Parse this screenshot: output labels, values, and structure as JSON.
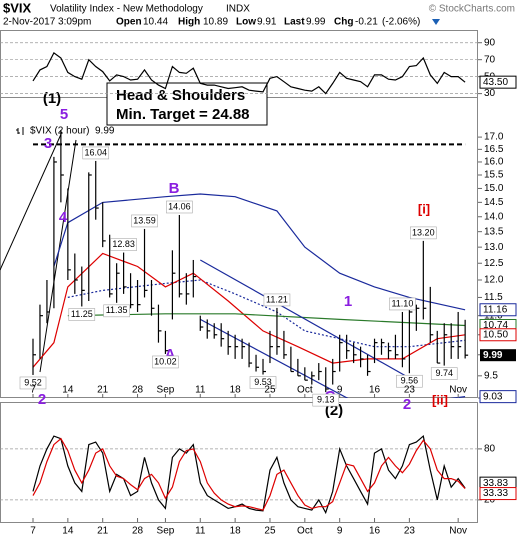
{
  "header": {
    "symbol": "$VIX",
    "name": "Volatility Index - New Methodology",
    "exchange": "INDX",
    "datetime": "2-Nov-2017 3:09pm",
    "quote": [
      {
        "label": "Open",
        "value": 10.44
      },
      {
        "label": "High",
        "value": 10.89
      },
      {
        "label": "Low",
        "value": 9.91
      },
      {
        "label": "Last",
        "value": 9.99
      },
      {
        "label": "Chg",
        "value": -0.21
      }
    ],
    "chg_pct": "(-2.06%)",
    "credit": "© StockCharts.com"
  },
  "callout": [
    "Head & Shoulders",
    "Min. Target = 24.88"
  ],
  "wave_labels": [
    "(1)",
    "5",
    "3",
    "4",
    "2",
    "B",
    "A",
    "1",
    "C",
    "2",
    "(2)",
    "[i]",
    "[ii]"
  ],
  "chart_data": [
    {
      "type": "line",
      "x": [
        "2017-08-07",
        "2017-08-08",
        "2017-08-09",
        "2017-08-10",
        "2017-08-11",
        "2017-08-14",
        "2017-08-15",
        "2017-08-16",
        "2017-08-17",
        "2017-08-18",
        "2017-08-21",
        "2017-08-22",
        "2017-08-23",
        "2017-08-24",
        "2017-08-25",
        "2017-08-28",
        "2017-08-29",
        "2017-08-30",
        "2017-08-31",
        "2017-09-01",
        "2017-09-05",
        "2017-09-06",
        "2017-09-07",
        "2017-09-08",
        "2017-09-11",
        "2017-09-12",
        "2017-09-13",
        "2017-09-14",
        "2017-09-15",
        "2017-09-18",
        "2017-09-19",
        "2017-09-20",
        "2017-09-21",
        "2017-09-22",
        "2017-09-25",
        "2017-09-26",
        "2017-09-27",
        "2017-09-28",
        "2017-09-29",
        "2017-10-02",
        "2017-10-03",
        "2017-10-04",
        "2017-10-05",
        "2017-10-06",
        "2017-10-09",
        "2017-10-10",
        "2017-10-11",
        "2017-10-12",
        "2017-10-13",
        "2017-10-16",
        "2017-10-17",
        "2017-10-18",
        "2017-10-19",
        "2017-10-20",
        "2017-10-23",
        "2017-10-24",
        "2017-10-25",
        "2017-10-26",
        "2017-10-27",
        "2017-10-30",
        "2017-10-31",
        "2017-11-01",
        "2017-11-02"
      ],
      "ylim": [
        26,
        105
      ],
      "yticks": [
        90,
        70,
        50,
        30
      ],
      "series": [
        {
          "color": "#000000",
          "last_label": "43.50",
          "values": [
            45,
            58,
            62,
            78,
            72,
            55,
            50,
            47,
            70,
            62,
            56,
            45,
            52,
            50,
            46,
            47,
            58,
            46,
            40,
            36,
            62,
            55,
            54,
            60,
            42,
            40,
            40,
            38,
            36,
            37,
            38,
            34,
            33,
            32,
            48,
            50,
            44,
            38,
            36,
            34,
            33,
            38,
            30,
            42,
            55,
            48,
            46,
            44,
            38,
            52,
            52,
            47,
            46,
            50,
            62,
            63,
            72,
            52,
            42,
            55,
            50,
            50,
            43.5
          ]
        }
      ]
    },
    {
      "type": "candlestick",
      "scale": "log",
      "x": [
        "2017-08-07",
        "2017-08-08",
        "2017-08-09",
        "2017-08-10",
        "2017-08-11",
        "2017-08-14",
        "2017-08-15",
        "2017-08-16",
        "2017-08-17",
        "2017-08-18",
        "2017-08-21",
        "2017-08-22",
        "2017-08-23",
        "2017-08-24",
        "2017-08-25",
        "2017-08-28",
        "2017-08-29",
        "2017-08-30",
        "2017-08-31",
        "2017-09-01",
        "2017-09-05",
        "2017-09-06",
        "2017-09-07",
        "2017-09-08",
        "2017-09-11",
        "2017-09-12",
        "2017-09-13",
        "2017-09-14",
        "2017-09-15",
        "2017-09-18",
        "2017-09-19",
        "2017-09-20",
        "2017-09-21",
        "2017-09-22",
        "2017-09-25",
        "2017-09-26",
        "2017-09-27",
        "2017-09-28",
        "2017-09-29",
        "2017-10-02",
        "2017-10-03",
        "2017-10-04",
        "2017-10-05",
        "2017-10-06",
        "2017-10-09",
        "2017-10-10",
        "2017-10-11",
        "2017-10-12",
        "2017-10-13",
        "2017-10-16",
        "2017-10-17",
        "2017-10-18",
        "2017-10-19",
        "2017-10-20",
        "2017-10-23",
        "2017-10-24",
        "2017-10-25",
        "2017-10-26",
        "2017-10-27",
        "2017-10-30",
        "2017-10-31",
        "2017-11-01",
        "2017-11-02"
      ],
      "xticks": [
        {
          "value": "2017-08-07",
          "label": "7"
        },
        {
          "value": "2017-08-14",
          "label": "14"
        },
        {
          "value": "2017-08-21",
          "label": "21"
        },
        {
          "value": "2017-08-28",
          "label": "28"
        },
        {
          "value": "2017-09-01",
          "label": "Sep"
        },
        {
          "value": "2017-09-11",
          "label": "11"
        },
        {
          "value": "2017-09-18",
          "label": "18"
        },
        {
          "value": "2017-09-25",
          "label": "25"
        },
        {
          "value": "2017-10-02",
          "label": "Oct"
        },
        {
          "value": "2017-10-09",
          "label": "9"
        },
        {
          "value": "2017-10-16",
          "label": "16"
        },
        {
          "value": "2017-10-23",
          "label": "23"
        },
        {
          "value": "2017-11-01",
          "label": "Nov"
        }
      ],
      "ylim": [
        9.0,
        18.7
      ],
      "yticks": [
        {
          "value": 17,
          "label": "17.0"
        },
        16.5,
        {
          "value": 16,
          "label": "16.0"
        },
        15.5,
        {
          "value": 15,
          "label": "15.0"
        },
        14.5,
        {
          "value": 14,
          "label": "14.0"
        },
        13.5,
        {
          "value": 13,
          "label": "13.0"
        },
        12.5,
        {
          "value": 12,
          "label": "12.0"
        },
        11.5,
        {
          "value": 11,
          "label": "11.0"
        },
        10.5,
        {
          "value": 10,
          "label": "10.0"
        },
        9.5,
        {
          "value": 9,
          "label": "9.0"
        }
      ],
      "series": [
        {
          "name": "$VIX (2 hour)",
          "color": "#000000",
          "high": [
            10.4,
            11.3,
            12.0,
            16.2,
            17.3,
            15.0,
            12.8,
            12.4,
            15.6,
            16.04,
            14.5,
            13.4,
            12.5,
            12.83,
            12.2,
            12.0,
            13.59,
            12.0,
            11.3,
            10.6,
            12.9,
            14.06,
            12.2,
            12.6,
            11.0,
            10.9,
            10.8,
            10.8,
            10.6,
            10.5,
            10.4,
            10.3,
            10.0,
            9.9,
            10.6,
            11.21,
            10.6,
            10.2,
            9.9,
            9.7,
            9.6,
            9.8,
            9.7,
            9.9,
            10.5,
            10.5,
            10.3,
            10.2,
            10.0,
            10.4,
            10.4,
            10.3,
            10.5,
            11.1,
            11.2,
            11.3,
            13.2,
            11.8,
            10.6,
            10.8,
            10.8,
            11.1,
            10.89
          ],
          "low": [
            9.52,
            9.9,
            10.8,
            11.2,
            14.5,
            12.0,
            11.6,
            11.25,
            11.4,
            13.9,
            13.0,
            11.5,
            11.35,
            11.6,
            11.2,
            11.1,
            11.5,
            11.0,
            10.3,
            10.02,
            10.9,
            11.5,
            11.3,
            11.5,
            10.6,
            10.4,
            10.4,
            10.2,
            10.0,
            9.9,
            9.9,
            9.7,
            9.6,
            9.53,
            9.8,
            10.0,
            9.9,
            9.6,
            9.5,
            9.4,
            9.3,
            9.4,
            9.13,
            9.3,
            9.6,
            9.9,
            9.8,
            9.7,
            9.5,
            9.8,
            10.0,
            9.9,
            9.9,
            9.7,
            9.56,
            10.6,
            10.9,
            10.3,
            9.8,
            9.74,
            9.9,
            9.9,
            9.91
          ],
          "values": [
            10.0,
            11.0,
            11.1,
            16.0,
            15.5,
            12.3,
            12.0,
            11.7,
            15.5,
            14.3,
            13.2,
            11.6,
            12.2,
            11.8,
            11.3,
            11.3,
            11.7,
            11.2,
            10.6,
            10.1,
            12.2,
            11.6,
            11.6,
            12.1,
            10.7,
            10.6,
            10.5,
            10.4,
            10.2,
            10.2,
            10.2,
            9.8,
            9.7,
            9.6,
            10.2,
            10.2,
            10.0,
            9.6,
            9.5,
            9.4,
            9.5,
            9.6,
            9.2,
            9.6,
            10.3,
            10.1,
            10.0,
            9.9,
            9.6,
            10.3,
            10.3,
            10.1,
            10.0,
            9.9,
            11.1,
            11.2,
            11.2,
            10.5,
            9.8,
            10.5,
            10.2,
            10.2,
            9.99
          ]
        }
      ],
      "overlays": [
        {
          "color": "#1a2a9c",
          "style": "solid",
          "x": [
            "2017-08-10",
            "2017-08-14",
            "2017-08-21",
            "2017-09-01",
            "2017-09-11",
            "2017-09-18",
            "2017-09-26",
            "2017-10-02",
            "2017-10-09",
            "2017-10-16",
            "2017-10-23",
            "2017-11-02"
          ],
          "values": [
            12.4,
            13.8,
            14.5,
            14.7,
            14.8,
            14.7,
            14.2,
            13.0,
            12.2,
            11.8,
            11.5,
            11.16
          ]
        },
        {
          "color": "#1a2a9c",
          "style": "solid",
          "x": [
            "2017-10-13",
            "2017-10-20",
            "2017-10-27",
            "2017-11-02"
          ],
          "values": [
            8.8,
            8.9,
            8.95,
            9.03
          ]
        },
        {
          "color": "#1a2a9c",
          "style": "dotted",
          "x": [
            "2017-08-14",
            "2017-08-21",
            "2017-09-01",
            "2017-09-11",
            "2017-09-18",
            "2017-09-26",
            "2017-10-02",
            "2017-10-09",
            "2017-10-16",
            "2017-10-23",
            "2017-11-02"
          ],
          "values": [
            11.5,
            11.7,
            11.9,
            12.0,
            11.6,
            11.1,
            10.6,
            10.4,
            10.2,
            10.2,
            10.36
          ]
        },
        {
          "color": "#dd0000",
          "style": "solid",
          "x": [
            "2017-08-07",
            "2017-08-10",
            "2017-08-14",
            "2017-08-21",
            "2017-08-28",
            "2017-09-01",
            "2017-09-08",
            "2017-09-15",
            "2017-09-22",
            "2017-09-29",
            "2017-10-06",
            "2017-10-13",
            "2017-10-20",
            "2017-10-27",
            "2017-11-02"
          ],
          "values": [
            9.7,
            10.3,
            11.8,
            12.8,
            12.4,
            11.8,
            12.2,
            11.4,
            10.6,
            10.2,
            9.8,
            9.9,
            9.9,
            10.4,
            10.5
          ]
        },
        {
          "color": "#2a7a2a",
          "style": "solid",
          "x": [
            "2017-08-14",
            "2017-09-01",
            "2017-09-18",
            "2017-10-09",
            "2017-11-02"
          ],
          "values": [
            11.0,
            11.05,
            11.05,
            10.9,
            10.74
          ]
        },
        {
          "color": "#000000",
          "style": "dashed",
          "x": [
            "2017-08-07",
            "2017-11-02"
          ],
          "values": [
            16.7,
            16.7
          ]
        },
        {
          "color": "#1a2a9c",
          "style": "solid",
          "x": [
            "2017-09-11",
            "2017-10-23"
          ],
          "values": [
            12.6,
            9.45
          ]
        },
        {
          "color": "#1a2a9c",
          "style": "solid",
          "x": [
            "2017-09-11",
            "2017-10-27"
          ],
          "values": [
            10.9,
            8.0
          ]
        }
      ],
      "annotations": [
        {
          "x": "2017-08-18",
          "value": 16.04
        },
        {
          "x": "2017-08-29",
          "value": 13.59
        },
        {
          "x": "2017-08-24",
          "value": 12.83
        },
        {
          "x": "2017-09-06",
          "value": 14.06
        },
        {
          "x": "2017-08-16",
          "value": 11.25
        },
        {
          "x": "2017-08-23",
          "value": 11.35
        },
        {
          "x": "2017-09-01",
          "value": 10.02
        },
        {
          "x": "2017-08-07",
          "value": 9.52
        },
        {
          "x": "2017-09-22",
          "value": 9.53
        },
        {
          "x": "2017-09-26",
          "value": 11.21
        },
        {
          "x": "2017-10-05",
          "value": 9.13
        },
        {
          "x": "2017-10-20",
          "value": 11.1,
          "label": "11.10"
        },
        {
          "x": "2017-10-23",
          "value": 9.56
        },
        {
          "x": "2017-10-25",
          "value": 13.2,
          "label": "13.20"
        },
        {
          "x": "2017-10-30",
          "value": 9.74
        }
      ],
      "right_labels": [
        {
          "value": 11.16,
          "color": "#1a2a9c"
        },
        {
          "value": 10.74,
          "color": "#2a7a2a"
        },
        {
          "value": 10.5,
          "label": "10.50",
          "color": "#dd0000"
        },
        {
          "value": 9.03,
          "color": "#1a2a9c"
        }
      ]
    },
    {
      "type": "line",
      "x": [
        "2017-08-07",
        "2017-08-08",
        "2017-08-09",
        "2017-08-10",
        "2017-08-11",
        "2017-08-14",
        "2017-08-15",
        "2017-08-16",
        "2017-08-17",
        "2017-08-18",
        "2017-08-21",
        "2017-08-22",
        "2017-08-23",
        "2017-08-24",
        "2017-08-25",
        "2017-08-28",
        "2017-08-29",
        "2017-08-30",
        "2017-08-31",
        "2017-09-01",
        "2017-09-05",
        "2017-09-06",
        "2017-09-07",
        "2017-09-08",
        "2017-09-11",
        "2017-09-12",
        "2017-09-13",
        "2017-09-14",
        "2017-09-15",
        "2017-09-18",
        "2017-09-19",
        "2017-09-20",
        "2017-09-21",
        "2017-09-22",
        "2017-09-25",
        "2017-09-26",
        "2017-09-27",
        "2017-09-28",
        "2017-09-29",
        "2017-10-02",
        "2017-10-03",
        "2017-10-04",
        "2017-10-05",
        "2017-10-06",
        "2017-10-09",
        "2017-10-10",
        "2017-10-11",
        "2017-10-12",
        "2017-10-13",
        "2017-10-16",
        "2017-10-17",
        "2017-10-18",
        "2017-10-19",
        "2017-10-20",
        "2017-10-23",
        "2017-10-24",
        "2017-10-25",
        "2017-10-26",
        "2017-10-27",
        "2017-10-30",
        "2017-10-31",
        "2017-11-01",
        "2017-11-02"
      ],
      "ylim": [
        -6,
        134
      ],
      "yticks": [
        80,
        20
      ],
      "series": [
        {
          "color": "#000000",
          "values": [
            30,
            60,
            80,
            95,
            92,
            60,
            40,
            30,
            85,
            88,
            75,
            30,
            50,
            45,
            25,
            30,
            70,
            40,
            20,
            10,
            70,
            80,
            75,
            85,
            40,
            25,
            20,
            15,
            10,
            12,
            15,
            10,
            8,
            7,
            55,
            70,
            40,
            20,
            12,
            10,
            8,
            20,
            5,
            30,
            80,
            60,
            45,
            30,
            15,
            75,
            80,
            55,
            45,
            60,
            85,
            88,
            95,
            55,
            20,
            60,
            35,
            45,
            33.83
          ]
        },
        {
          "color": "#dd0000",
          "values": [
            25,
            40,
            65,
            85,
            92,
            78,
            55,
            40,
            55,
            75,
            80,
            60,
            48,
            45,
            38,
            32,
            45,
            50,
            40,
            22,
            35,
            65,
            78,
            80,
            65,
            40,
            28,
            20,
            15,
            12,
            13,
            12,
            10,
            8,
            25,
            50,
            55,
            40,
            25,
            14,
            10,
            12,
            12,
            18,
            40,
            62,
            60,
            45,
            30,
            40,
            60,
            70,
            60,
            52,
            62,
            78,
            90,
            80,
            55,
            45,
            45,
            42,
            33.33
          ]
        }
      ]
    }
  ]
}
